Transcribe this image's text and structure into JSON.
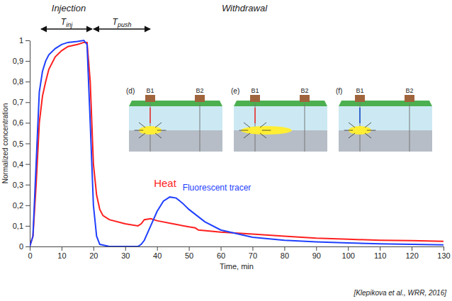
{
  "chart_data": {
    "type": "line",
    "x_label": "Time, min",
    "y_label": "Normalized concentration",
    "xlim": [
      0,
      130
    ],
    "xticks": [
      0,
      10,
      20,
      30,
      40,
      50,
      60,
      70,
      80,
      90,
      100,
      110,
      120,
      130
    ],
    "ylim": [
      0,
      1
    ],
    "yticks": [
      0,
      {
        "value": 0.1,
        "label": "0,1"
      },
      {
        "value": 0.2,
        "label": "0,2"
      },
      {
        "value": 0.3,
        "label": "0,3"
      },
      {
        "value": 0.4,
        "label": "0,4"
      },
      {
        "value": 0.5,
        "label": "0,5"
      },
      {
        "value": 0.6,
        "label": "0,6"
      },
      {
        "value": 0.7,
        "label": "0,7"
      },
      {
        "value": 0.8,
        "label": "0,8"
      },
      {
        "value": 0.9,
        "label": "0,9"
      },
      1
    ],
    "grid": false,
    "series": [
      {
        "name": "Heat",
        "color": "#ff1f1f",
        "x": [
          0,
          1,
          2,
          3,
          4,
          5,
          6,
          8,
          10,
          12,
          15,
          17,
          18,
          19,
          20,
          21,
          22,
          23,
          25,
          30,
          34,
          35,
          36,
          38,
          40,
          45,
          50,
          52,
          53,
          60,
          70,
          80,
          90,
          100,
          110,
          120,
          130
        ],
        "values": [
          0,
          0.05,
          0.3,
          0.6,
          0.73,
          0.8,
          0.86,
          0.92,
          0.95,
          0.97,
          0.98,
          0.99,
          0.99,
          0.8,
          0.4,
          0.25,
          0.18,
          0.15,
          0.13,
          0.11,
          0.1,
          0.11,
          0.13,
          0.135,
          0.125,
          0.11,
          0.095,
          0.09,
          0.08,
          0.07,
          0.06,
          0.05,
          0.04,
          0.035,
          0.03,
          0.028,
          0.025
        ]
      },
      {
        "name": "Fluorescent tracer",
        "color": "#1f3fff",
        "x": [
          0,
          1,
          2,
          3,
          4,
          5,
          6,
          8,
          10,
          12,
          15,
          17,
          18,
          19,
          20,
          21,
          22,
          25,
          30,
          34,
          35,
          36,
          38,
          40,
          42,
          44,
          46,
          48,
          50,
          55,
          60,
          70,
          80,
          90,
          100,
          110,
          120,
          130
        ],
        "values": [
          0,
          0.05,
          0.4,
          0.75,
          0.85,
          0.9,
          0.93,
          0.96,
          0.98,
          0.99,
          0.995,
          1,
          0.98,
          0.6,
          0.2,
          0.05,
          0.01,
          0,
          0,
          0,
          0.01,
          0.03,
          0.1,
          0.17,
          0.22,
          0.24,
          0.235,
          0.21,
          0.18,
          0.12,
          0.08,
          0.045,
          0.03,
          0.022,
          0.017,
          0.013,
          0.01,
          0.008
        ]
      }
    ],
    "phases": [
      "Injection",
      "Withdrawal"
    ],
    "durations": [
      {
        "symbol": "T",
        "subscript": "inj"
      },
      {
        "symbol": "T",
        "subscript": "push"
      }
    ],
    "insets": [
      "(d)",
      "(e)",
      "(f)"
    ],
    "borehole_labels": [
      "B1",
      "B2"
    ],
    "source": "[Klepikova et al., WRR, 2016]"
  }
}
